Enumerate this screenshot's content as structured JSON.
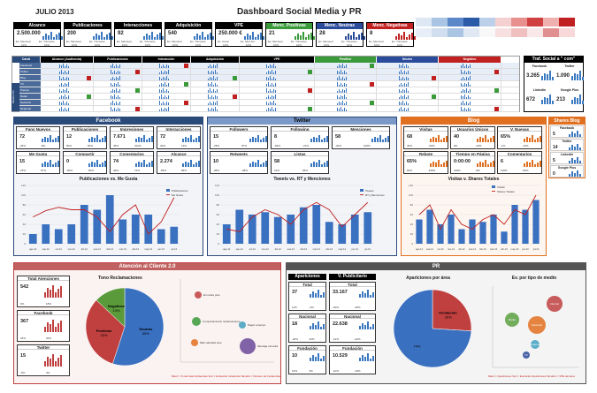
{
  "header": {
    "date": "JULIO 2013",
    "title": "Dashboard Social Media y PR"
  },
  "kpis": [
    {
      "label": "Alcance",
      "value": "2.500.000",
      "sub1": "Ex. Mensual",
      "sub2": "Ex. Trimestre",
      "p1": "10%",
      "p2": "10%",
      "color": "#000"
    },
    {
      "label": "Publicaciones",
      "value": "200",
      "sub1": "Ex. Mensual",
      "sub2": "Ex. Trimestre",
      "p1": "10%",
      "p2": "10%",
      "color": "#000"
    },
    {
      "label": "Interacciones",
      "value": "92",
      "sub1": "Ex. Mensual",
      "sub2": "Ex. Trimestre",
      "p1": "10%",
      "p2": "10%",
      "color": "#000"
    },
    {
      "label": "Adquisición",
      "value": "540",
      "sub1": "Ex. Mensual",
      "sub2": "Ex. Trimestre",
      "p1": "10%",
      "p2": "10%",
      "color": "#000"
    },
    {
      "label": "VPE",
      "value": "250.000 €",
      "sub1": "Ex. Anual",
      "sub2": "Ex. Mes Ant.",
      "p1": "10%",
      "p2": "10%",
      "color": "#000"
    },
    {
      "label": "Menc. Positivas",
      "value": "21",
      "sub1": "Ex. Mensual",
      "sub2": "Ex. Trimestre",
      "p1": "10%",
      "p2": "10%",
      "color": "#3a9a3a"
    },
    {
      "label": "Menc. Neutras",
      "value": "28",
      "sub1": "Ex. Mensual",
      "sub2": "Ex. Trimestre",
      "p1": "10%",
      "p2": "10%",
      "color": "#2a4a9a"
    },
    {
      "label": "Menc. Negativas",
      "value": "8",
      "sub1": "Ex. Mensual",
      "sub2": "Ex. Trimestre",
      "p1": "10%",
      "p2": "10%",
      "color": "#c02020"
    }
  ],
  "table": {
    "headers": [
      "Canal",
      "Alcance (Audiencia)",
      "Publicaciones",
      "Interacción",
      "Adquisición",
      "VPE",
      "Positivo",
      "Neutro",
      "Negativo"
    ],
    "rows": [
      "Facebook",
      "Twitter",
      "Blog",
      "TV",
      "Prensa",
      "Radio",
      "Nacional",
      "Regional"
    ],
    "side_label": "Medios PR"
  },
  "traf": {
    "title": "Traf. Social a \" com\"",
    "items": [
      {
        "label": "Facebook",
        "value": "3.265"
      },
      {
        "label": "Twitter",
        "value": "1.090"
      },
      {
        "label": "Linkedin",
        "value": "672"
      },
      {
        "label": "Google Plus",
        "value": "213"
      }
    ]
  },
  "facebook": {
    "title": "Facebook",
    "cards": [
      {
        "label": "Fans Nuevos",
        "value": "72",
        "a": "-26%",
        "b": "-8%"
      },
      {
        "label": "Publicaciones",
        "value": "12",
        "a": "50%",
        "b": "50%"
      },
      {
        "label": "Impresiones",
        "value": "7.671",
        "a": "45%",
        "b": "312%"
      },
      {
        "label": "Interacciones",
        "value": "72",
        "a": "33%",
        "b": "13%"
      },
      {
        "label": "Me Gusta",
        "value": "15",
        "a": "-76%",
        "b": "67%"
      },
      {
        "label": "Compartir",
        "value": "0",
        "a": "-50%",
        "b": "-50%"
      },
      {
        "label": "Comentarios",
        "value": "74",
        "a": "49%",
        "b": "72%"
      },
      {
        "label": "Alcance",
        "value": "2.274",
        "a": "-55%",
        "b": "86%"
      }
    ],
    "chart_title": "Publicaciones vs. Me Gusta",
    "legend": [
      "Publicaciones",
      "Me Gusta"
    ]
  },
  "twitter": {
    "title": "Twitter",
    "cards": [
      {
        "label": "Followers",
        "value": "15",
        "a": "-78%",
        "b": "67%"
      },
      {
        "label": "Following",
        "value": "8",
        "a": "-69%",
        "b": "-72%"
      },
      {
        "label": "Menciones",
        "value": "58",
        "a": "-30%",
        "b": "100%"
      },
      {
        "label": "Retweets",
        "value": "10",
        "a": "-38%",
        "b": "-38%"
      },
      {
        "label": "Listas",
        "value": "58",
        "a": "31%",
        "b": "65%"
      }
    ],
    "chart_title": "Tweets vs. RT y Menciones",
    "legend": [
      "Tweets",
      "RT y Menciones"
    ]
  },
  "blog": {
    "title": "Blog",
    "cards": [
      {
        "label": "Visitas",
        "value": "68",
        "a": "40%",
        "b": "-60%"
      },
      {
        "label": "Usuarios Únicos",
        "value": "40",
        "a": "9%",
        "b": "-16%"
      },
      {
        "label": "V. Nuevas",
        "value": "65%",
        "a": "-1%",
        "b": "-10%"
      },
      {
        "label": "Rebote",
        "value": "65%",
        "a": "84%",
        "b": "345%"
      },
      {
        "label": "Tiempo en Página",
        "value": "0:00:00",
        "a": "100%",
        "b": "-8%"
      },
      {
        "label": "Comentarios",
        "value": "6",
        "a": "100%",
        "b": "-50%"
      }
    ],
    "chart_title": "Visitas v. Shares Totales",
    "legend": [
      "Visitas",
      "Shares Totales"
    ]
  },
  "shares": {
    "title": "Shares Blog",
    "items": [
      {
        "label": "Facebook",
        "value": "5"
      },
      {
        "label": "Twitter",
        "value": "14"
      },
      {
        "label": "Linkedin",
        "value": "5"
      },
      {
        "label": "Google Plus",
        "value": "0"
      }
    ]
  },
  "atencion": {
    "title": "Atención al Cliente 2.0",
    "cards": [
      {
        "label": "Total Atenciones",
        "value": "542",
        "a": "0%",
        "b": "18%"
      },
      {
        "label": "Facebook",
        "value": "367",
        "a": "24%",
        "b": "25%"
      },
      {
        "label": "Twitter",
        "value": "15",
        "a": "-6%",
        "b": "4%"
      }
    ],
    "pie_title": "Tono Reclamaciones",
    "pie": [
      {
        "label": "Neutras",
        "pct": "55%",
        "value": 55,
        "color": "#3a70c0"
      },
      {
        "label": "Positivas",
        "pct": "32%",
        "value": 32,
        "color": "#c04040"
      },
      {
        "label": "Negativas",
        "pct": "13%",
        "value": 13,
        "color": "#5a9a3a"
      }
    ],
    "bubble_legend": [
      "En redes pres",
      "Comportamiento reclamaciones",
      "Más valorada pres",
      "Pagar a tiempo",
      "Mensaje innovador"
    ],
    "note": "Manz = % del total Incidencias  Vert = Evolución Incidencia  Tamaño = Número de Incidencias"
  },
  "pr": {
    "title": "PR",
    "col1": "Apariciones",
    "col2": "V. Publicitario",
    "cards": [
      {
        "label": "Total",
        "v1": "37",
        "v2": "33.167",
        "a1": "11%",
        "b1": "-2%",
        "a2": "-20%",
        "b2": "-45%"
      },
      {
        "label": "Nacional",
        "v1": "18",
        "v2": "22.638",
        "a1": "-20%",
        "b1": "22%",
        "a2": "-12%",
        "b2": "-22%"
      },
      {
        "label": "Fundación",
        "v1": "10",
        "v2": "10.529",
        "a1": "16%",
        "b1": "3%",
        "a2": "-10%",
        "b2": "-16%"
      }
    ],
    "pie_title": "Apariciones por área",
    "pie": [
      {
        "label": "Fundación",
        "pct": "26%",
        "value": 26,
        "color": "#c04040"
      },
      {
        "label": "",
        "pct": "74%",
        "value": 74,
        "color": "#3a70c0"
      }
    ],
    "bubble_title": "Ev. por tipo de medio",
    "bubbles": [
      {
        "label": "Internet",
        "color": "#c04040"
      },
      {
        "label": "Radio",
        "color": "#5aa040"
      },
      {
        "label": "Nacional",
        "color": "#e07020"
      },
      {
        "label": "Regional",
        "color": "#40a0c0"
      },
      {
        "label": "TV",
        "color": "#2a4a9a"
      }
    ],
    "note": "Manz = Apariciones  Vert = Evolución Apariciones  Tamaño = VPE del área"
  },
  "chart_data": [
    {
      "type": "bar",
      "title": "Publicaciones vs. Me Gusta",
      "categories": [
        "ago-12",
        "sep-12",
        "oct-12",
        "nov-12",
        "dic-12",
        "ene-13",
        "feb-13",
        "mar-13",
        "abr-13",
        "may-13",
        "jun-13",
        "jul-13"
      ],
      "series": [
        {
          "name": "Publicaciones",
          "values": [
            20,
            40,
            30,
            40,
            80,
            70,
            100,
            50,
            60,
            60,
            30,
            35
          ]
        },
        {
          "name": "Me Gusta",
          "values": [
            55,
            68,
            75,
            70,
            70,
            55,
            25,
            60,
            80,
            20,
            45,
            95
          ]
        }
      ],
      "ylim": [
        0,
        120
      ]
    },
    {
      "type": "bar",
      "title": "Tweets vs. RT y Menciones",
      "categories": [
        "ago-12",
        "sep-12",
        "oct-12",
        "nov-12",
        "dic-12",
        "ene-13",
        "feb-13",
        "mar-13",
        "abr-13",
        "may-13",
        "jun-13",
        "jul-13"
      ],
      "series": [
        {
          "name": "Tweets",
          "values": [
            40,
            70,
            60,
            65,
            55,
            60,
            75,
            80,
            45,
            40,
            60,
            65
          ]
        },
        {
          "name": "RT y Menciones",
          "values": [
            30,
            25,
            55,
            70,
            60,
            40,
            70,
            85,
            70,
            35,
            60,
            85
          ]
        }
      ],
      "ylim": [
        0,
        120
      ]
    },
    {
      "type": "bar",
      "title": "Visitas v. Shares Totales",
      "categories": [
        "ago-12",
        "sep-12",
        "oct-12",
        "nov-12",
        "dic-12",
        "ene-13",
        "feb-13",
        "mar-13",
        "abr-13",
        "may-13",
        "jun-13",
        "jul-13"
      ],
      "series": [
        {
          "name": "Visitas",
          "values": [
            50,
            70,
            40,
            60,
            30,
            50,
            45,
            60,
            25,
            80,
            70,
            90
          ]
        },
        {
          "name": "Shares Totales",
          "values": [
            60,
            80,
            30,
            70,
            40,
            30,
            50,
            60,
            40,
            70,
            60,
            100
          ]
        }
      ],
      "ylim": [
        0,
        120
      ]
    }
  ]
}
